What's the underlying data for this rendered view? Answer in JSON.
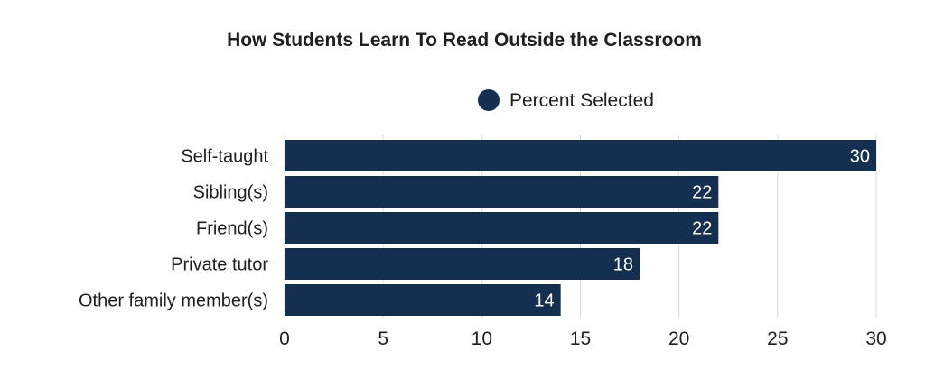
{
  "chart_data": {
    "type": "bar",
    "orientation": "horizontal",
    "title": "How Students Learn To Read Outside the Classroom",
    "categories": [
      "Self-taught",
      "Sibling(s)",
      "Friend(s)",
      "Private tutor",
      "Other family member(s)"
    ],
    "series": [
      {
        "name": "Percent Selected",
        "values": [
          30,
          22,
          22,
          18,
          14
        ],
        "color": "#142f4f"
      }
    ],
    "data_labels": [
      "30",
      "22",
      "22",
      "18",
      "14"
    ],
    "xlim": [
      0,
      30
    ],
    "x_ticks": [
      0,
      5,
      10,
      15,
      20,
      25,
      30
    ],
    "x_tick_labels": [
      "0",
      "5",
      "10",
      "15",
      "20",
      "25",
      "30"
    ],
    "xlabel": "",
    "ylabel": "",
    "grid": true,
    "legend_position": "top-center"
  }
}
